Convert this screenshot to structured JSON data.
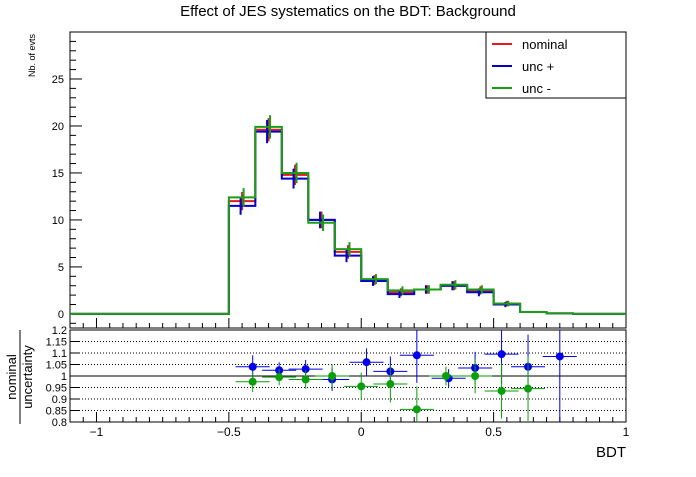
{
  "chart_data": [
    {
      "type": "line",
      "title": "Effect of JES systematics on the BDT: Background",
      "ylabel": "Nb. of evts",
      "xlabel": "",
      "xlim": [
        -1.1,
        1.0
      ],
      "ylim": [
        -1.5,
        30
      ],
      "yticks": [
        0,
        5,
        10,
        15,
        20,
        25
      ],
      "grid": false,
      "legend_position": "top-right",
      "bin_edges": [
        -1.1,
        -0.5,
        -0.4,
        -0.3,
        -0.2,
        -0.1,
        0.0,
        0.1,
        0.2,
        0.3,
        0.4,
        0.5,
        0.6,
        0.7,
        0.8,
        1.0
      ],
      "series": [
        {
          "name": "nominal",
          "color": "#e41a1c",
          "values": [
            0,
            12.0,
            19.6,
            14.8,
            10.0,
            6.6,
            3.6,
            2.3,
            2.6,
            3.0,
            2.5,
            1.1,
            0.2,
            0.05,
            0
          ]
        },
        {
          "name": "unc +",
          "color": "#0000cc",
          "values": [
            0,
            11.5,
            19.4,
            14.4,
            10.0,
            6.2,
            3.5,
            2.1,
            2.6,
            3.0,
            2.3,
            1.0,
            0.2,
            0.05,
            0
          ]
        },
        {
          "name": "unc -",
          "color": "#1a9e1a",
          "values": [
            0,
            12.4,
            19.9,
            15.0,
            9.7,
            6.9,
            3.7,
            2.5,
            2.6,
            3.1,
            2.6,
            1.1,
            0.2,
            0.05,
            0
          ]
        }
      ]
    },
    {
      "type": "scatter",
      "xlabel": "BDT",
      "ylabel": "nominal / uncertainty",
      "ylabel_top": "nominal",
      "ylabel_bottom": "uncertainty",
      "xlim": [
        -1.1,
        1.0
      ],
      "ylim": [
        0.8,
        1.2
      ],
      "xticks": [
        -1,
        -0.5,
        0,
        0.5,
        1
      ],
      "yticks": [
        0.8,
        0.85,
        0.9,
        0.95,
        1,
        1.05,
        1.1,
        1.15,
        1.2
      ],
      "grid": true,
      "series": [
        {
          "name": "unc +",
          "color": "#0000ee",
          "points": [
            {
              "x": -0.41,
              "y": 1.04,
              "err": 0.05
            },
            {
              "x": -0.31,
              "y": 1.025,
              "err": 0.035
            },
            {
              "x": -0.21,
              "y": 1.03,
              "err": 0.04
            },
            {
              "x": -0.11,
              "y": 0.985,
              "err": 0.05
            },
            {
              "x": 0.02,
              "y": 1.06,
              "err": 0.06
            },
            {
              "x": 0.11,
              "y": 1.02,
              "err": 0.065
            },
            {
              "x": 0.21,
              "y": 1.09,
              "err": 0.12
            },
            {
              "x": 0.33,
              "y": 0.99,
              "err": 0.04
            },
            {
              "x": 0.43,
              "y": 1.035,
              "err": 0.07
            },
            {
              "x": 0.53,
              "y": 1.095,
              "err": 0.13
            },
            {
              "x": 0.63,
              "y": 1.04,
              "err": 0.14
            },
            {
              "x": 0.75,
              "y": 1.085,
              "err": 0.3
            }
          ]
        },
        {
          "name": "unc -",
          "color": "#0a9e0a",
          "points": [
            {
              "x": -0.41,
              "y": 0.975,
              "err": 0.045
            },
            {
              "x": -0.31,
              "y": 0.995,
              "err": 0.035
            },
            {
              "x": -0.21,
              "y": 0.985,
              "err": 0.04
            },
            {
              "x": -0.11,
              "y": 1.0,
              "err": 0.05
            },
            {
              "x": 0.0,
              "y": 0.955,
              "err": 0.06
            },
            {
              "x": 0.11,
              "y": 0.965,
              "err": 0.08
            },
            {
              "x": 0.21,
              "y": 0.855,
              "err": 0.1
            },
            {
              "x": 0.32,
              "y": 1.0,
              "err": 0.04
            },
            {
              "x": 0.43,
              "y": 1.0,
              "err": 0.075
            },
            {
              "x": 0.53,
              "y": 0.935,
              "err": 0.12
            },
            {
              "x": 0.63,
              "y": 0.945,
              "err": 0.14
            }
          ]
        }
      ]
    }
  ]
}
